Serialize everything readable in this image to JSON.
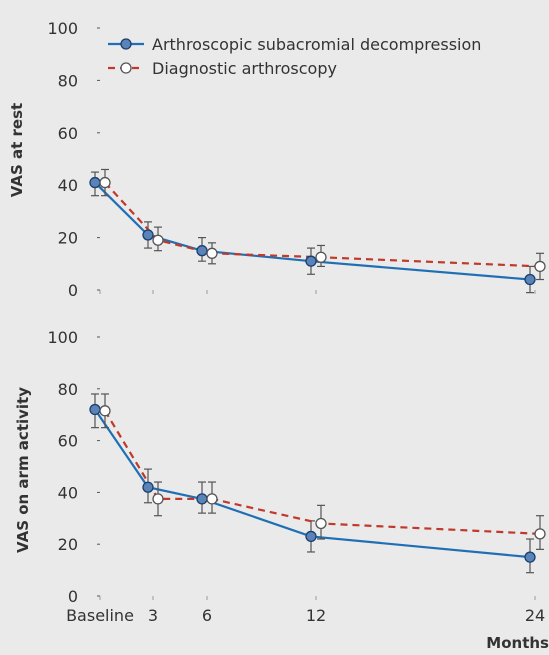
{
  "chart_data": [
    {
      "type": "line",
      "ylabel": "VAS at rest",
      "xlabel": "",
      "ylim": [
        0,
        100
      ],
      "yticks": [
        0,
        20,
        40,
        60,
        80,
        100
      ],
      "x": [
        0,
        3,
        6,
        12,
        24
      ],
      "xticks": [
        0,
        3,
        6,
        12,
        24
      ],
      "series": [
        {
          "name": "Arthroscopic subacromial decompression",
          "color": "#1f6fb5",
          "style": "solid",
          "marker": "filled",
          "values": [
            41,
            21,
            15,
            11,
            4
          ],
          "err_low": [
            36,
            16,
            11,
            6,
            -1
          ],
          "err_high": [
            45,
            26,
            20,
            16,
            9
          ]
        },
        {
          "name": "Diagnostic arthroscopy",
          "color": "#c0392b",
          "style": "dashed",
          "marker": "open",
          "values": [
            41,
            19,
            14,
            12.5,
            9
          ],
          "err_low": [
            36,
            15,
            10,
            9,
            4
          ],
          "err_high": [
            46,
            24,
            18,
            17,
            14
          ]
        }
      ],
      "legend": "top-left",
      "grid": false
    },
    {
      "type": "line",
      "ylabel": "VAS on arm activity",
      "xlabel": "Months",
      "ylim": [
        0,
        100
      ],
      "yticks": [
        0,
        20,
        40,
        60,
        80,
        100
      ],
      "x": [
        0,
        3,
        6,
        12,
        24
      ],
      "xticks": [
        0,
        3,
        6,
        12,
        24
      ],
      "xticklabels": [
        "Baseline",
        "3",
        "6",
        "12",
        "24"
      ],
      "series": [
        {
          "name": "Arthroscopic subacromial decompression",
          "color": "#1f6fb5",
          "style": "solid",
          "marker": "filled",
          "values": [
            72,
            42,
            37.5,
            23,
            15
          ],
          "err_low": [
            65,
            36,
            32,
            17,
            9
          ],
          "err_high": [
            78,
            49,
            44,
            29,
            22
          ]
        },
        {
          "name": "Diagnostic arthroscopy",
          "color": "#c0392b",
          "style": "dashed",
          "marker": "open",
          "values": [
            71.5,
            37.5,
            37.5,
            28,
            24
          ],
          "err_low": [
            65,
            31,
            32,
            22,
            18
          ],
          "err_high": [
            78,
            44,
            44,
            35,
            31
          ]
        }
      ],
      "grid": false
    }
  ]
}
